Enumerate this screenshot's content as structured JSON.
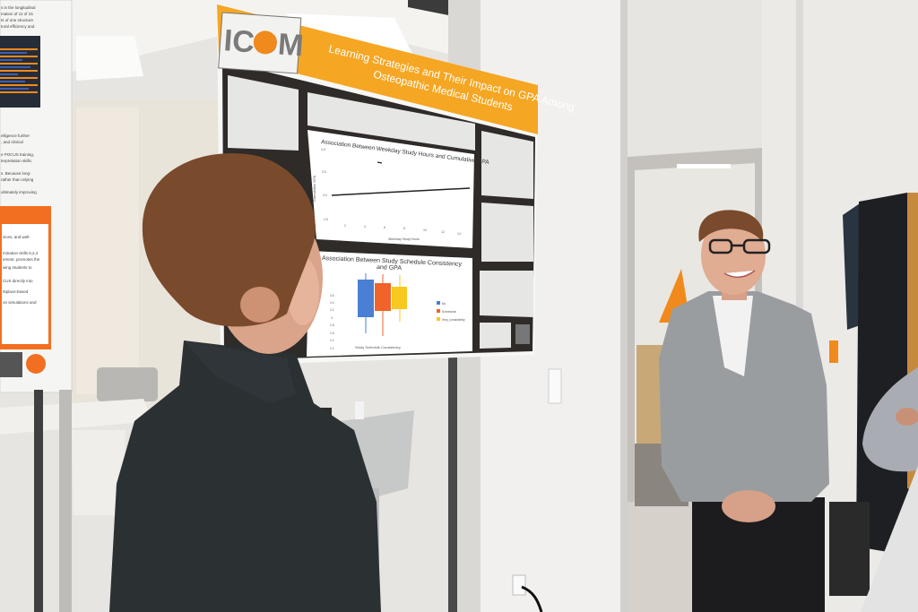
{
  "scene": {
    "description_colors": {
      "poster_orange": "#f5a623",
      "poster_dark": "#2e2b29",
      "wall": "#eeede9",
      "suit_dark": "#2b3033",
      "blazer_gray": "#9a9da0",
      "hair_brown": "#7a4a2c"
    }
  },
  "left_poster": {
    "fragments": [
      "s in the longitudinal",
      "mation of 11 of 15",
      "ts of one structure",
      "tural efficiency and",
      "elligence further",
      ", and clinical",
      "e POCUS training,",
      "terpretation skills.",
      "s. Because long-",
      "rather than relying",
      "ultimately improving",
      "vices, and well-",
      "mination skills 6,2,4",
      "ement, promotes the",
      "wing students to",
      "CUS directly into",
      "rkplace-based",
      "on simulations and"
    ],
    "qr_icon": "qr-code",
    "logo_icon": "caduceus"
  },
  "poster": {
    "logo_text": "ICOM",
    "logo_icon": "caduceus",
    "title_line1": "Learning Strategies and Their Impact on GPA Among",
    "title_line2": "Osteopathic Medical Students",
    "chart1": {
      "title": "Association Between Weekday Study Hours and Cumulative GPA",
      "ylabel": "Cumulative GPA",
      "xlabel": "Weekday Study Hours",
      "yticks": [
        "4.0",
        "3.5",
        "3.0",
        "2.5"
      ],
      "xticks": [
        "2",
        "4",
        "6",
        "8",
        "10",
        "12",
        "14"
      ]
    },
    "chart2": {
      "title_line1": "Association Between Study Schedule Consistency",
      "title_line2": "and GPA",
      "xlabel": "Study Schedule Consistency",
      "yticks": [
        "3.6",
        "3.4",
        "3.2",
        "3",
        "2.8",
        "2.6",
        "2.4",
        "2.2"
      ],
      "legend": [
        {
          "label": "No",
          "color": "#4a7fd4"
        },
        {
          "label": "Somewhat",
          "color": "#f0632a"
        },
        {
          "label": "Very_consistently",
          "color": "#f7c81e"
        }
      ]
    },
    "qr_icon": "qr-code"
  }
}
